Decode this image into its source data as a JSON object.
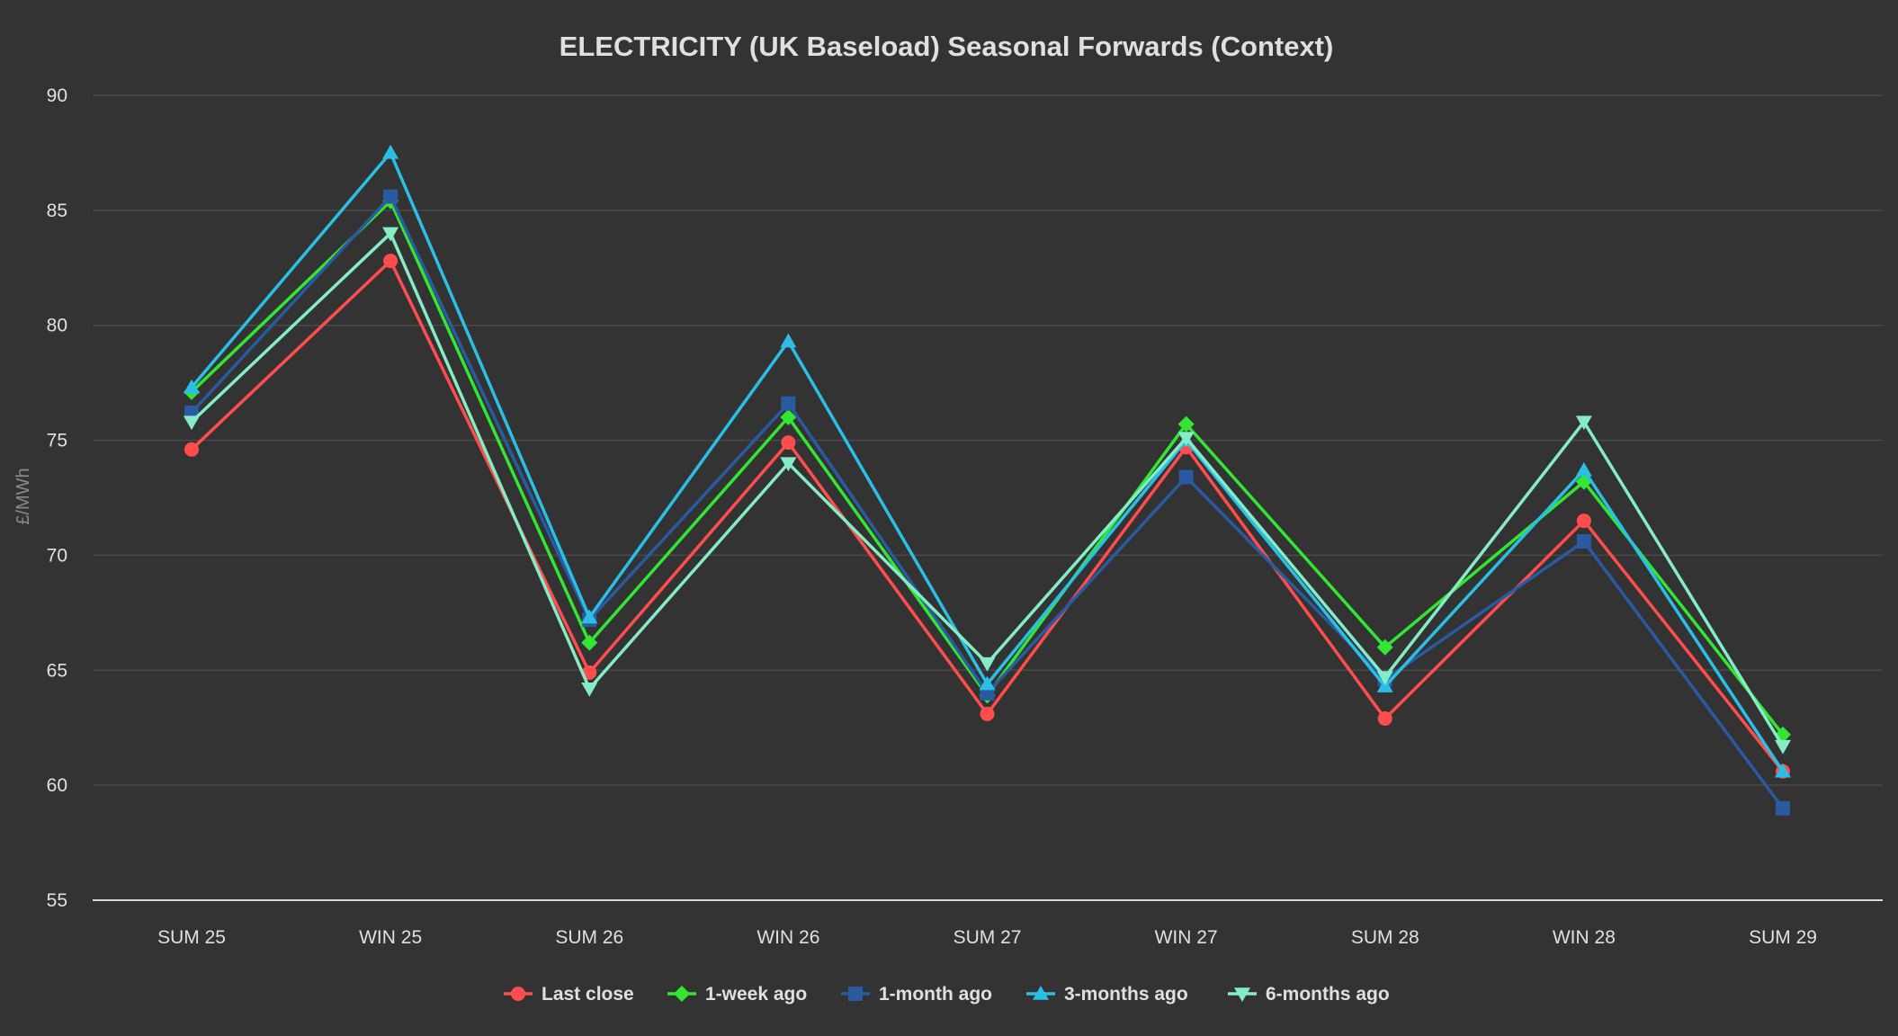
{
  "chart_data": {
    "type": "line",
    "title": "ELECTRICITY (UK Baseload) Seasonal Forwards (Context)",
    "xlabel": "",
    "ylabel": "£/MWh",
    "ylim": [
      55,
      90
    ],
    "yticks": [
      55,
      60,
      65,
      70,
      75,
      80,
      85,
      90
    ],
    "grid": true,
    "legend_position": "bottom",
    "categories": [
      "SUM 25",
      "WIN 25",
      "SUM 26",
      "WIN 26",
      "SUM 27",
      "WIN 27",
      "SUM 28",
      "WIN 28",
      "SUM 29"
    ],
    "series": [
      {
        "name": "Last close",
        "color": "#ff4d4d",
        "marker": "circle",
        "values": [
          74.6,
          82.8,
          64.9,
          74.9,
          63.1,
          74.7,
          62.9,
          71.5,
          60.6
        ]
      },
      {
        "name": "1-week ago",
        "color": "#33e633",
        "marker": "diamond",
        "values": [
          77.1,
          85.4,
          66.2,
          76.0,
          63.9,
          75.7,
          66.0,
          73.2,
          62.2
        ]
      },
      {
        "name": "1-month ago",
        "color": "#2a5aa0",
        "marker": "square",
        "values": [
          76.2,
          85.6,
          67.2,
          76.6,
          64.0,
          73.4,
          64.6,
          70.6,
          59.0
        ]
      },
      {
        "name": "3-months ago",
        "color": "#2bbfe6",
        "marker": "triangle",
        "values": [
          77.3,
          87.5,
          67.3,
          79.3,
          64.4,
          75.0,
          64.3,
          73.7,
          60.6
        ]
      },
      {
        "name": "6-months ago",
        "color": "#86ecc6",
        "marker": "triangle-down",
        "values": [
          75.8,
          84.0,
          64.2,
          74.0,
          65.3,
          75.1,
          64.7,
          75.8,
          61.7
        ]
      }
    ]
  }
}
